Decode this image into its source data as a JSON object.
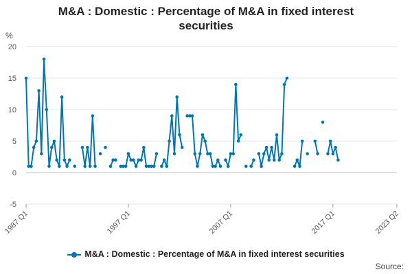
{
  "chart_data": {
    "type": "line",
    "title_lines": [
      "M&A : Domestic : Percentage of M&A in fixed interest",
      "securities"
    ],
    "ylabel": "%",
    "ylim": [
      -5,
      20
    ],
    "yticks": [
      -5,
      0,
      5,
      10,
      15,
      20
    ],
    "xlim": [
      0,
      145
    ],
    "xticks": [
      {
        "pos": 0,
        "label": "1987 Q1"
      },
      {
        "pos": 40,
        "label": "1997 Q1"
      },
      {
        "pos": 80,
        "label": "2007 Q1"
      },
      {
        "pos": 120,
        "label": "2017 Q1"
      },
      {
        "pos": 145,
        "label": "2023 Q2"
      }
    ],
    "grid": true,
    "series": [
      {
        "name": "M&A : Domestic : Percentage of M&A in fixed interest securities",
        "color": "#0075b0",
        "start_quarter": "1987 Q1",
        "values": [
          15,
          1,
          1,
          4,
          5,
          13,
          3,
          18,
          10,
          1,
          4,
          5,
          2,
          1,
          12,
          2,
          1,
          2,
          null,
          1,
          null,
          null,
          4,
          1,
          4,
          1,
          9,
          1,
          null,
          3,
          null,
          4,
          null,
          1,
          2,
          2,
          null,
          1,
          1,
          1,
          3,
          2,
          2,
          1,
          2,
          2,
          4,
          1,
          1,
          1,
          1,
          3,
          null,
          1,
          2,
          1,
          5,
          9,
          3,
          12,
          6,
          4,
          null,
          9,
          9,
          9,
          3,
          1,
          3,
          6,
          5,
          3,
          3,
          1,
          1,
          2,
          1,
          null,
          2,
          1,
          3,
          3,
          14,
          5,
          6,
          null,
          1,
          null,
          1,
          2,
          null,
          3,
          1,
          3,
          4,
          2,
          4,
          2,
          6,
          2,
          3,
          14,
          15,
          null,
          null,
          1,
          2,
          1,
          5,
          null,
          3,
          null,
          null,
          5,
          3,
          null,
          8,
          null,
          3,
          5,
          3,
          4,
          2
        ]
      }
    ],
    "legend": "M&A : Domestic : Percentage of M&A in fixed interest securities",
    "legend_position": "bottom",
    "source_text": "Source:"
  }
}
